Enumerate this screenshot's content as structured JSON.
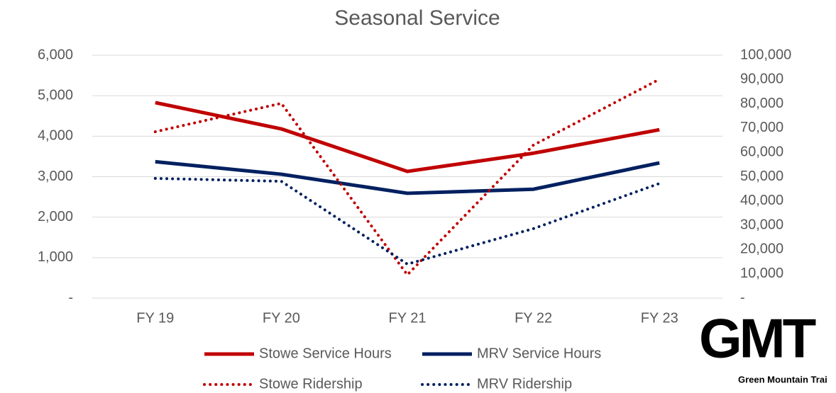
{
  "chart_data": {
    "type": "line",
    "title": "Seasonal Service",
    "categories": [
      "FY 19",
      "FY 20",
      "FY 21",
      "FY 22",
      "FY 23"
    ],
    "series": [
      {
        "name": "Stowe Service Hours",
        "color": "#c00000",
        "style": "solid",
        "axis": "y",
        "values": [
          4830,
          4180,
          3130,
          3580,
          4160
        ]
      },
      {
        "name": "MRV Service Hours",
        "color": "#002060",
        "style": "solid",
        "axis": "y",
        "values": [
          3370,
          3060,
          2590,
          2690,
          3340
        ]
      },
      {
        "name": "Stowe Ridership",
        "color": "#c00000",
        "style": "dotted",
        "axis": "y2",
        "values": [
          68500,
          80200,
          9600,
          63000,
          90100
        ]
      },
      {
        "name": "MRV Ridership",
        "color": "#002060",
        "style": "dotted",
        "axis": "y2",
        "values": [
          49300,
          48100,
          14000,
          28600,
          47200
        ]
      }
    ],
    "ylim": [
      0,
      6000
    ],
    "yticks": [
      {
        "value": 0,
        "label": "-"
      },
      {
        "value": 1000,
        "label": "1,000"
      },
      {
        "value": 2000,
        "label": "2,000"
      },
      {
        "value": 3000,
        "label": "3,000"
      },
      {
        "value": 4000,
        "label": "4,000"
      },
      {
        "value": 5000,
        "label": "5,000"
      },
      {
        "value": 6000,
        "label": "6,000"
      }
    ],
    "y2lim": [
      0,
      100000
    ],
    "y2ticks": [
      {
        "value": 0,
        "label": "-"
      },
      {
        "value": 10000,
        "label": "10,000"
      },
      {
        "value": 20000,
        "label": "20,000"
      },
      {
        "value": 30000,
        "label": "30,000"
      },
      {
        "value": 40000,
        "label": "40,000"
      },
      {
        "value": 50000,
        "label": "50,000"
      },
      {
        "value": 60000,
        "label": "60,000"
      },
      {
        "value": 70000,
        "label": "70,000"
      },
      {
        "value": 80000,
        "label": "80,000"
      },
      {
        "value": 90000,
        "label": "90,000"
      },
      {
        "value": 100000,
        "label": "100,000"
      }
    ],
    "grid": true,
    "legend": "bottom"
  },
  "logo": {
    "mark": "GMT",
    "name": "Green Mountain Trai"
  }
}
